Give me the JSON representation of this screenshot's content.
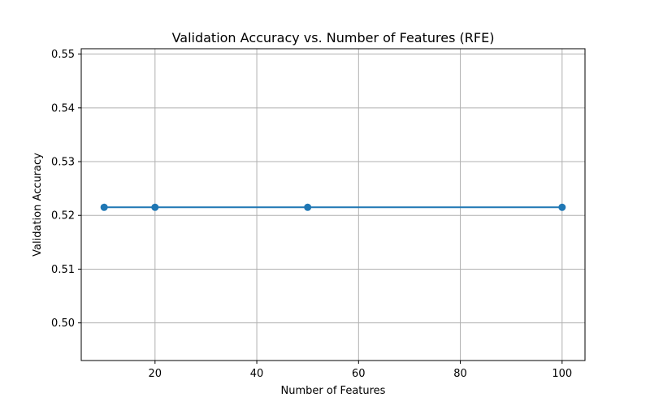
{
  "chart_data": {
    "type": "line",
    "title": "Validation Accuracy vs. Number of Features (RFE)",
    "xlabel": "Number of Features",
    "ylabel": "Validation Accuracy",
    "xlim": [
      5.5,
      104.5
    ],
    "ylim": [
      0.493,
      0.551
    ],
    "x_ticks": [
      20,
      40,
      60,
      80,
      100
    ],
    "x_tick_labels": [
      "20",
      "40",
      "60",
      "80",
      "100"
    ],
    "y_ticks": [
      0.5,
      0.51,
      0.52,
      0.53,
      0.54,
      0.55
    ],
    "y_tick_labels": [
      "0.50",
      "0.51",
      "0.52",
      "0.53",
      "0.54",
      "0.55"
    ],
    "grid": true,
    "series": [
      {
        "x": [
          10,
          20,
          50,
          100
        ],
        "values": [
          0.5215,
          0.5215,
          0.5215,
          0.5215
        ],
        "color": "#1f77b4",
        "marker": "circle"
      }
    ]
  }
}
